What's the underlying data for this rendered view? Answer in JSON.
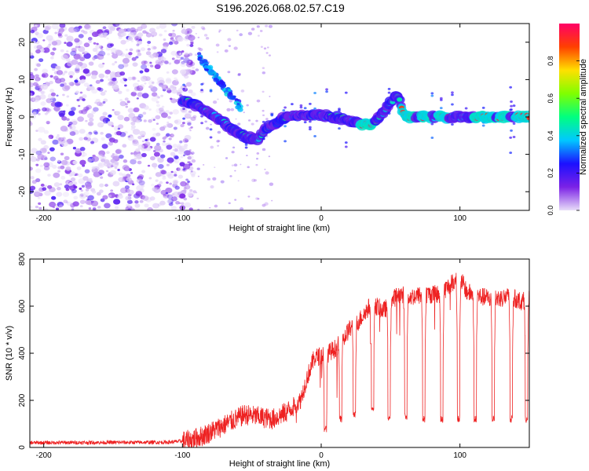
{
  "page": {
    "title": "S196.2026.068.02.57.C19"
  },
  "chart_data": [
    {
      "type": "heatmap",
      "name": "spectrogram",
      "xlabel": "Height of straight line (km)",
      "ylabel": "Frequency (Hz)",
      "xlim": [
        -210,
        150
      ],
      "ylim": [
        -25,
        25
      ],
      "xticks": [
        -200,
        -100,
        0,
        100
      ],
      "xtick_labels": [
        "-200",
        "-100",
        "0",
        "100"
      ],
      "yticks": [
        -20,
        -10,
        0,
        10,
        20
      ],
      "ytick_labels": [
        "-20",
        "-10",
        "0",
        "10",
        "20"
      ],
      "colorbar": {
        "label": "Normalized spectral amplitude",
        "range": [
          0,
          1
        ],
        "ticks": [
          0.0,
          0.2,
          0.4,
          0.6,
          0.8
        ],
        "tick_labels": [
          "0.0",
          "0.2",
          "0.4",
          "0.6",
          "0.8"
        ],
        "stops": [
          "#e8ddf8",
          "#7b22e6",
          "#1c10ff",
          "#00c8ff",
          "#00ff80",
          "#7fff00",
          "#ffe000",
          "#ff4000",
          "#ff0066"
        ]
      },
      "trace": {
        "x": [
          -100,
          -92,
          -84,
          -78,
          -70,
          -62,
          -54,
          -46,
          -40,
          -34,
          -26,
          -18,
          -10,
          0,
          10,
          20,
          30,
          36,
          42,
          48,
          55,
          60,
          80,
          100,
          120,
          140,
          150
        ],
        "y": [
          4.5,
          3.5,
          1.5,
          0.5,
          -1.5,
          -4,
          -5.5,
          -6,
          -3,
          -2,
          0,
          0.5,
          0.5,
          0.5,
          0,
          -1,
          -2,
          -2,
          0,
          3,
          6,
          0,
          0,
          0,
          0,
          0,
          0
        ]
      },
      "strong_segments_km": [
        [
          58,
          68
        ],
        [
          72,
          80
        ],
        [
          84,
          92
        ],
        [
          110,
          125
        ],
        [
          128,
          136
        ],
        [
          140,
          150
        ],
        [
          28,
          38
        ]
      ]
    },
    {
      "type": "line",
      "name": "snr",
      "xlabel": "Height of straight line (km)",
      "ylabel": "SNR (10 * v/v)",
      "color": "#ee2222",
      "xlim": [
        -210,
        150
      ],
      "ylim": [
        0,
        800
      ],
      "xticks": [
        -200,
        -100,
        0,
        100
      ],
      "xtick_labels": [
        "-200",
        "-100",
        "0",
        "100"
      ],
      "yticks": [
        0,
        200,
        400,
        600,
        800
      ],
      "ytick_labels": [
        "0",
        "200",
        "400",
        "600",
        "800"
      ],
      "envelope": {
        "x": [
          -210,
          -110,
          -95,
          -85,
          -75,
          -65,
          -55,
          -45,
          -35,
          -25,
          -15,
          -10,
          -5,
          0,
          5,
          10,
          15,
          20,
          25,
          30,
          35,
          40,
          45,
          55,
          65,
          75,
          85,
          95,
          100,
          105,
          115,
          125,
          135,
          145,
          150
        ],
        "y": [
          20,
          22,
          30,
          50,
          80,
          110,
          140,
          130,
          120,
          150,
          200,
          300,
          380,
          390,
          400,
          420,
          450,
          500,
          520,
          560,
          600,
          600,
          580,
          650,
          640,
          650,
          650,
          700,
          720,
          660,
          640,
          630,
          640,
          620,
          630
        ]
      },
      "dips": [
        {
          "x": 3,
          "y": 80
        },
        {
          "x": 14,
          "y": 120
        },
        {
          "x": 24,
          "y": 140
        },
        {
          "x": 37,
          "y": 160
        },
        {
          "x": 49,
          "y": 130
        },
        {
          "x": 61,
          "y": 130
        },
        {
          "x": 74,
          "y": 120
        },
        {
          "x": 87,
          "y": 120
        },
        {
          "x": 99,
          "y": 120
        },
        {
          "x": 111,
          "y": 120
        },
        {
          "x": 124,
          "y": 120
        },
        {
          "x": 137,
          "y": 120
        },
        {
          "x": 148,
          "y": 120
        }
      ]
    }
  ]
}
